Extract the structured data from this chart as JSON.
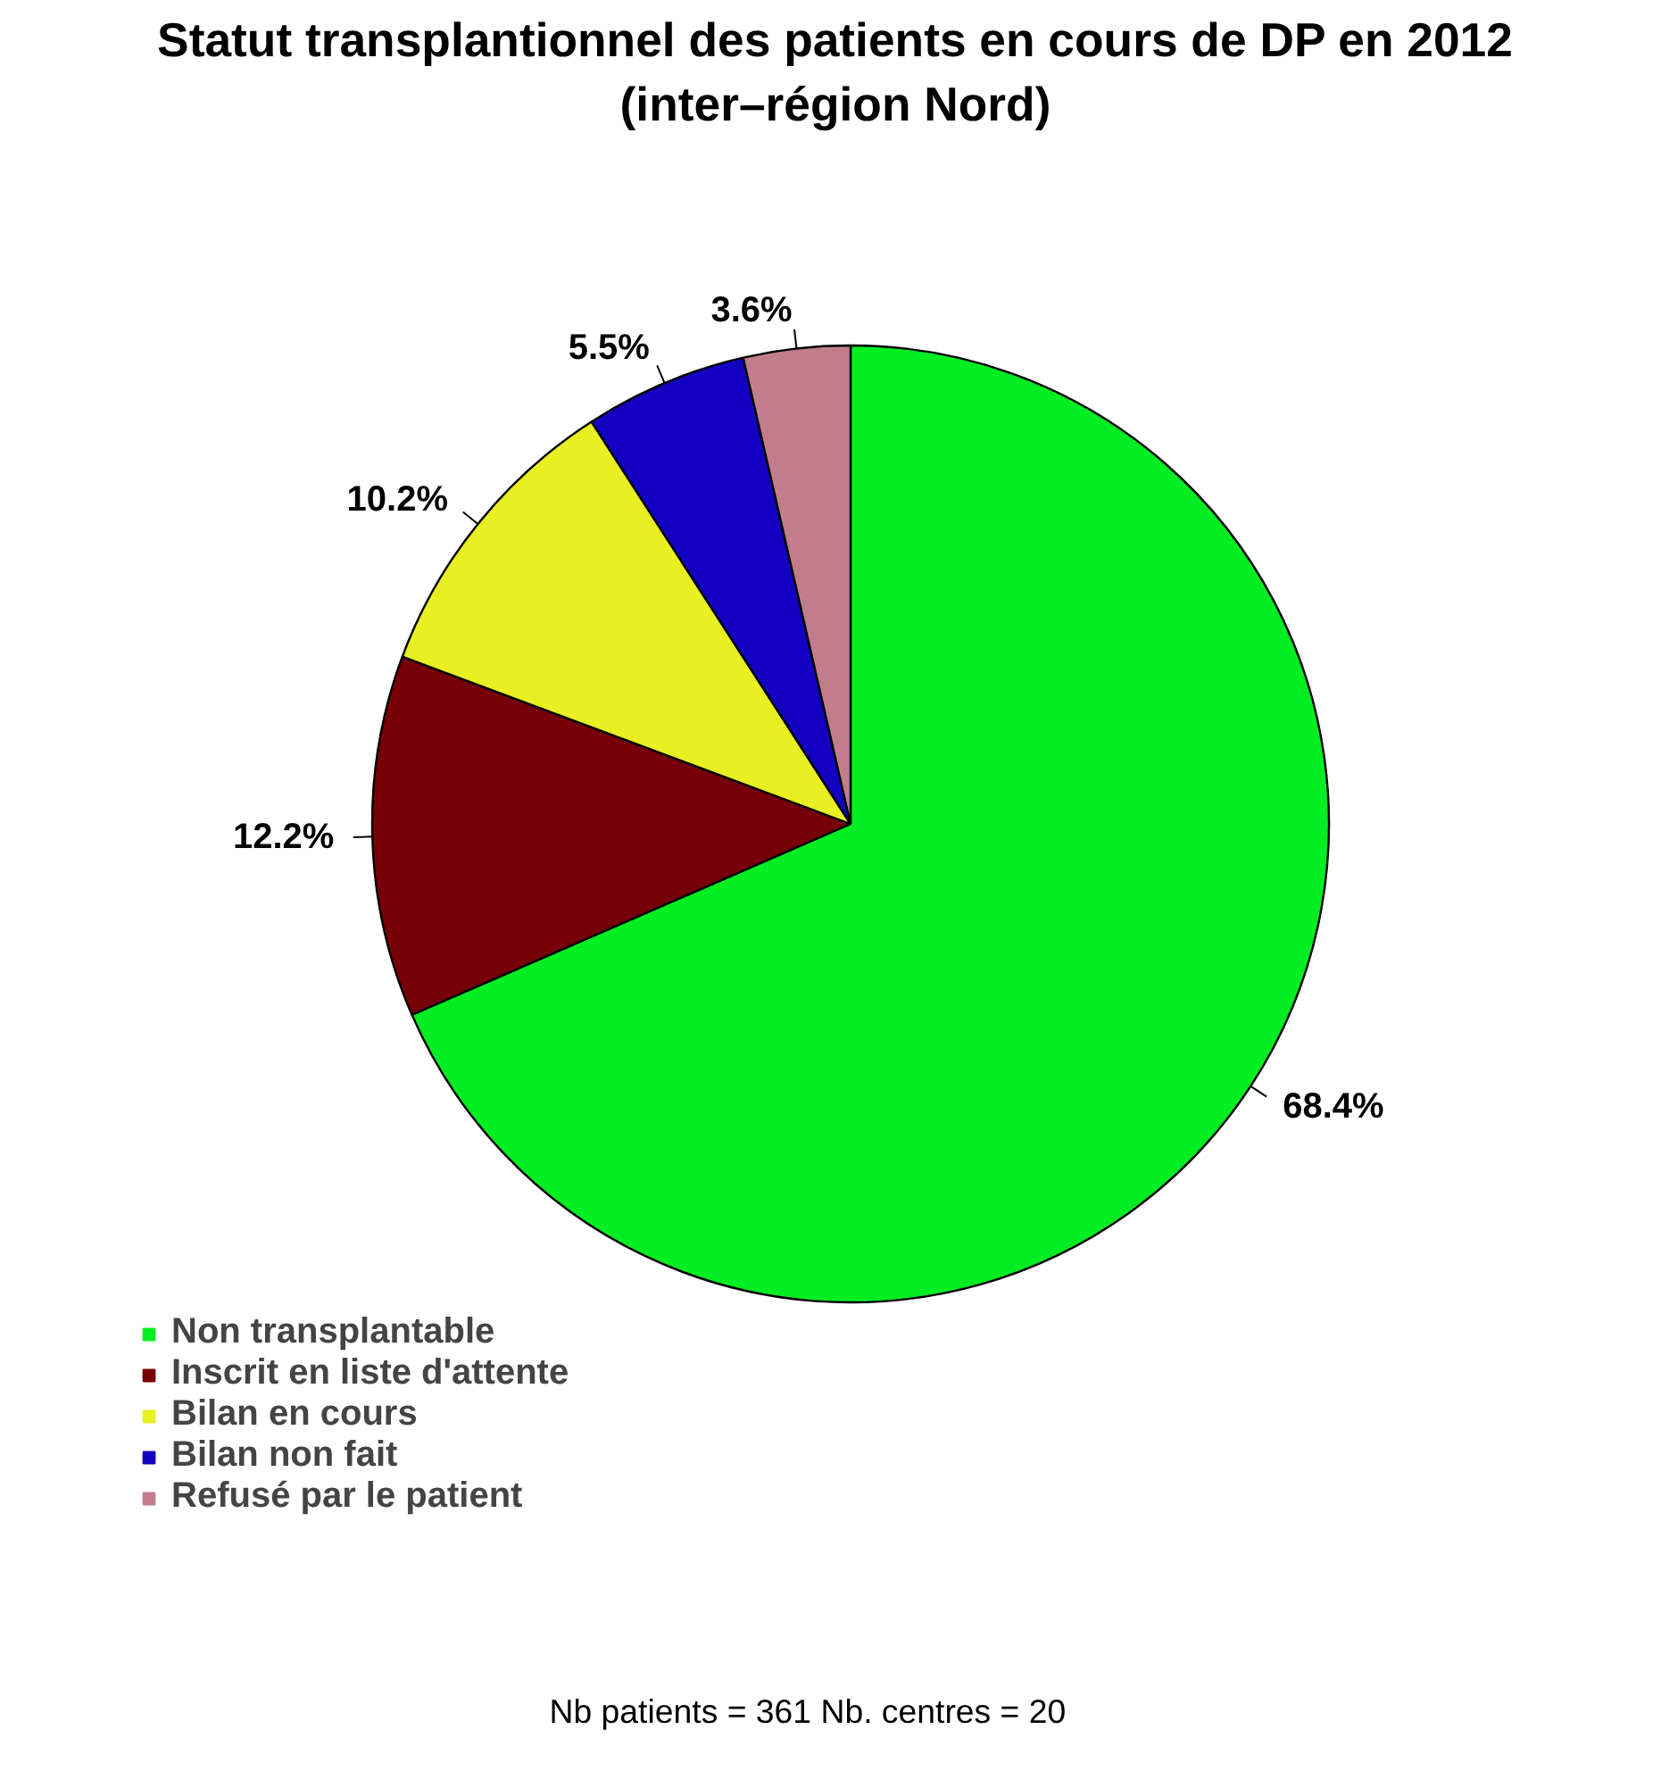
{
  "chart_data": {
    "type": "pie",
    "title": "Statut transplantionnel des patients en cours de DP en 2012\n(inter–région Nord)",
    "categories": [
      "Non transplantable",
      "Inscrit en liste d'attente",
      "Bilan en cours",
      "Bilan non fait",
      "Refusé par le patient"
    ],
    "values": [
      68.4,
      12.2,
      10.2,
      5.5,
      3.6
    ],
    "colors": [
      "#00ee22",
      "#770008",
      "#e8ef22",
      "#1400c0",
      "#c27d8c"
    ],
    "value_labels": [
      "68.4%",
      "12.2%",
      "10.2%",
      "5.5%",
      "3.6%"
    ],
    "legend": "bottom left",
    "annotations": [
      "Nb patients =  361     Nb. centres =  20"
    ]
  }
}
